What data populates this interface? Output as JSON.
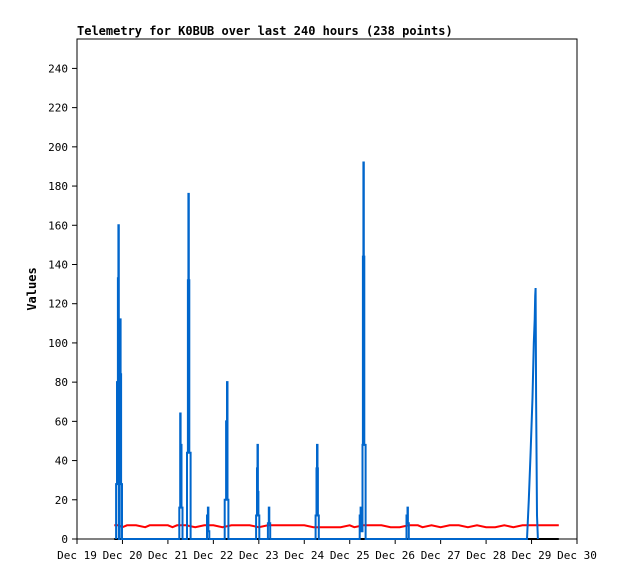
{
  "chart_data": {
    "type": "line",
    "title": "Telemetry for K0BUB over last 240 hours (238 points)",
    "ylabel": "Values",
    "xlabel": "",
    "ylim": [
      0,
      255
    ],
    "xlim": [
      0,
      11
    ],
    "y_ticks": [
      0,
      20,
      40,
      60,
      80,
      100,
      120,
      140,
      160,
      180,
      200,
      220,
      240
    ],
    "x_ticks": [
      {
        "x": 0,
        "label": "Dec 19"
      },
      {
        "x": 1,
        "label": "Dec 20"
      },
      {
        "x": 2,
        "label": "Dec 21"
      },
      {
        "x": 3,
        "label": "Dec 22"
      },
      {
        "x": 4,
        "label": "Dec 23"
      },
      {
        "x": 5,
        "label": "Dec 24"
      },
      {
        "x": 6,
        "label": "Dec 25"
      },
      {
        "x": 7,
        "label": "Dec 26"
      },
      {
        "x": 8,
        "label": "Dec 27"
      },
      {
        "x": 9,
        "label": "Dec 28"
      },
      {
        "x": 10,
        "label": "Dec 29"
      },
      {
        "x": 11,
        "label": "Dec 30"
      }
    ],
    "series": [
      {
        "color": "#000000",
        "points": [
          [
            0.82,
            0
          ],
          [
            10.6,
            0
          ]
        ]
      },
      {
        "color": "#ff0000",
        "points": [
          [
            0.82,
            7
          ],
          [
            0.92,
            7
          ],
          [
            1.0,
            6
          ],
          [
            1.1,
            7
          ],
          [
            1.3,
            7
          ],
          [
            1.5,
            6
          ],
          [
            1.6,
            7
          ],
          [
            1.8,
            7
          ],
          [
            2.0,
            7
          ],
          [
            2.1,
            6
          ],
          [
            2.2,
            7
          ],
          [
            2.4,
            7
          ],
          [
            2.6,
            6
          ],
          [
            2.8,
            7
          ],
          [
            3.0,
            7
          ],
          [
            3.2,
            6
          ],
          [
            3.4,
            7
          ],
          [
            3.6,
            7
          ],
          [
            3.8,
            7
          ],
          [
            4.0,
            6
          ],
          [
            4.2,
            7
          ],
          [
            4.5,
            7
          ],
          [
            4.8,
            7
          ],
          [
            5.0,
            7
          ],
          [
            5.2,
            6
          ],
          [
            5.4,
            6
          ],
          [
            5.6,
            6
          ],
          [
            5.8,
            6
          ],
          [
            6.0,
            7
          ],
          [
            6.1,
            6
          ],
          [
            6.3,
            7
          ],
          [
            6.5,
            7
          ],
          [
            6.7,
            7
          ],
          [
            6.9,
            6
          ],
          [
            7.1,
            6
          ],
          [
            7.3,
            7
          ],
          [
            7.5,
            7
          ],
          [
            7.6,
            6
          ],
          [
            7.8,
            7
          ],
          [
            8.0,
            6
          ],
          [
            8.2,
            7
          ],
          [
            8.4,
            7
          ],
          [
            8.6,
            6
          ],
          [
            8.8,
            7
          ],
          [
            9.0,
            6
          ],
          [
            9.2,
            6
          ],
          [
            9.4,
            7
          ],
          [
            9.6,
            6
          ],
          [
            9.8,
            7
          ],
          [
            10.0,
            7
          ],
          [
            10.2,
            7
          ],
          [
            10.4,
            7
          ],
          [
            10.6,
            7
          ]
        ]
      },
      {
        "color": "#0066cc",
        "points": [
          [
            0.86,
            0
          ],
          [
            0.86,
            28
          ],
          [
            0.88,
            28
          ],
          [
            0.88,
            80
          ],
          [
            0.9,
            80
          ],
          [
            0.9,
            133
          ],
          [
            0.91,
            133
          ],
          [
            0.91,
            160
          ],
          [
            0.92,
            160
          ],
          [
            0.92,
            0
          ],
          [
            0.94,
            0
          ],
          [
            0.94,
            84
          ],
          [
            0.95,
            84
          ],
          [
            0.95,
            112
          ],
          [
            0.96,
            112
          ],
          [
            0.96,
            84
          ],
          [
            0.97,
            84
          ],
          [
            0.97,
            28
          ],
          [
            0.99,
            28
          ],
          [
            0.99,
            0
          ],
          [
            2.25,
            0
          ],
          [
            2.25,
            16
          ],
          [
            2.27,
            16
          ],
          [
            2.27,
            64
          ],
          [
            2.28,
            64
          ],
          [
            2.28,
            48
          ],
          [
            2.3,
            48
          ],
          [
            2.3,
            16
          ],
          [
            2.32,
            16
          ],
          [
            2.32,
            0
          ],
          [
            2.42,
            0
          ],
          [
            2.42,
            44
          ],
          [
            2.44,
            44
          ],
          [
            2.44,
            132
          ],
          [
            2.45,
            132
          ],
          [
            2.45,
            176
          ],
          [
            2.46,
            176
          ],
          [
            2.46,
            132
          ],
          [
            2.47,
            132
          ],
          [
            2.47,
            44
          ],
          [
            2.5,
            44
          ],
          [
            2.5,
            0
          ],
          [
            2.86,
            0
          ],
          [
            2.86,
            12
          ],
          [
            2.88,
            12
          ],
          [
            2.88,
            16
          ],
          [
            2.89,
            16
          ],
          [
            2.89,
            4
          ],
          [
            2.91,
            4
          ],
          [
            2.91,
            0
          ],
          [
            3.25,
            0
          ],
          [
            3.25,
            20
          ],
          [
            3.28,
            20
          ],
          [
            3.28,
            60
          ],
          [
            3.3,
            60
          ],
          [
            3.3,
            80
          ],
          [
            3.31,
            80
          ],
          [
            3.31,
            20
          ],
          [
            3.33,
            20
          ],
          [
            3.33,
            0
          ],
          [
            3.94,
            0
          ],
          [
            3.94,
            12
          ],
          [
            3.96,
            12
          ],
          [
            3.96,
            36
          ],
          [
            3.97,
            36
          ],
          [
            3.97,
            48
          ],
          [
            3.98,
            48
          ],
          [
            3.98,
            24
          ],
          [
            3.99,
            24
          ],
          [
            3.99,
            12
          ],
          [
            4.01,
            12
          ],
          [
            4.01,
            0
          ],
          [
            4.2,
            0
          ],
          [
            4.2,
            8
          ],
          [
            4.22,
            8
          ],
          [
            4.22,
            16
          ],
          [
            4.23,
            16
          ],
          [
            4.23,
            8
          ],
          [
            4.25,
            8
          ],
          [
            4.25,
            0
          ],
          [
            5.25,
            0
          ],
          [
            5.25,
            12
          ],
          [
            5.27,
            12
          ],
          [
            5.27,
            36
          ],
          [
            5.28,
            36
          ],
          [
            5.28,
            48
          ],
          [
            5.29,
            48
          ],
          [
            5.29,
            36
          ],
          [
            5.3,
            36
          ],
          [
            5.3,
            12
          ],
          [
            5.32,
            12
          ],
          [
            5.32,
            0
          ],
          [
            6.22,
            0
          ],
          [
            6.22,
            12
          ],
          [
            6.24,
            12
          ],
          [
            6.24,
            16
          ],
          [
            6.25,
            16
          ],
          [
            6.25,
            4
          ],
          [
            6.28,
            4
          ],
          [
            6.28,
            48
          ],
          [
            6.29,
            48
          ],
          [
            6.29,
            144
          ],
          [
            6.3,
            144
          ],
          [
            6.3,
            192
          ],
          [
            6.31,
            192
          ],
          [
            6.31,
            144
          ],
          [
            6.32,
            144
          ],
          [
            6.32,
            48
          ],
          [
            6.35,
            48
          ],
          [
            6.35,
            0
          ],
          [
            7.25,
            0
          ],
          [
            7.25,
            12
          ],
          [
            7.27,
            12
          ],
          [
            7.27,
            16
          ],
          [
            7.28,
            16
          ],
          [
            7.28,
            8
          ],
          [
            7.3,
            8
          ],
          [
            7.3,
            0
          ],
          [
            9.9,
            0
          ],
          [
            9.94,
            20
          ],
          [
            9.98,
            44
          ],
          [
            10.02,
            72
          ],
          [
            10.05,
            100
          ],
          [
            10.07,
            112
          ],
          [
            10.08,
            124
          ],
          [
            10.09,
            128
          ],
          [
            10.1,
            72
          ],
          [
            10.12,
            12
          ],
          [
            10.14,
            0
          ]
        ]
      }
    ],
    "grid": false
  }
}
